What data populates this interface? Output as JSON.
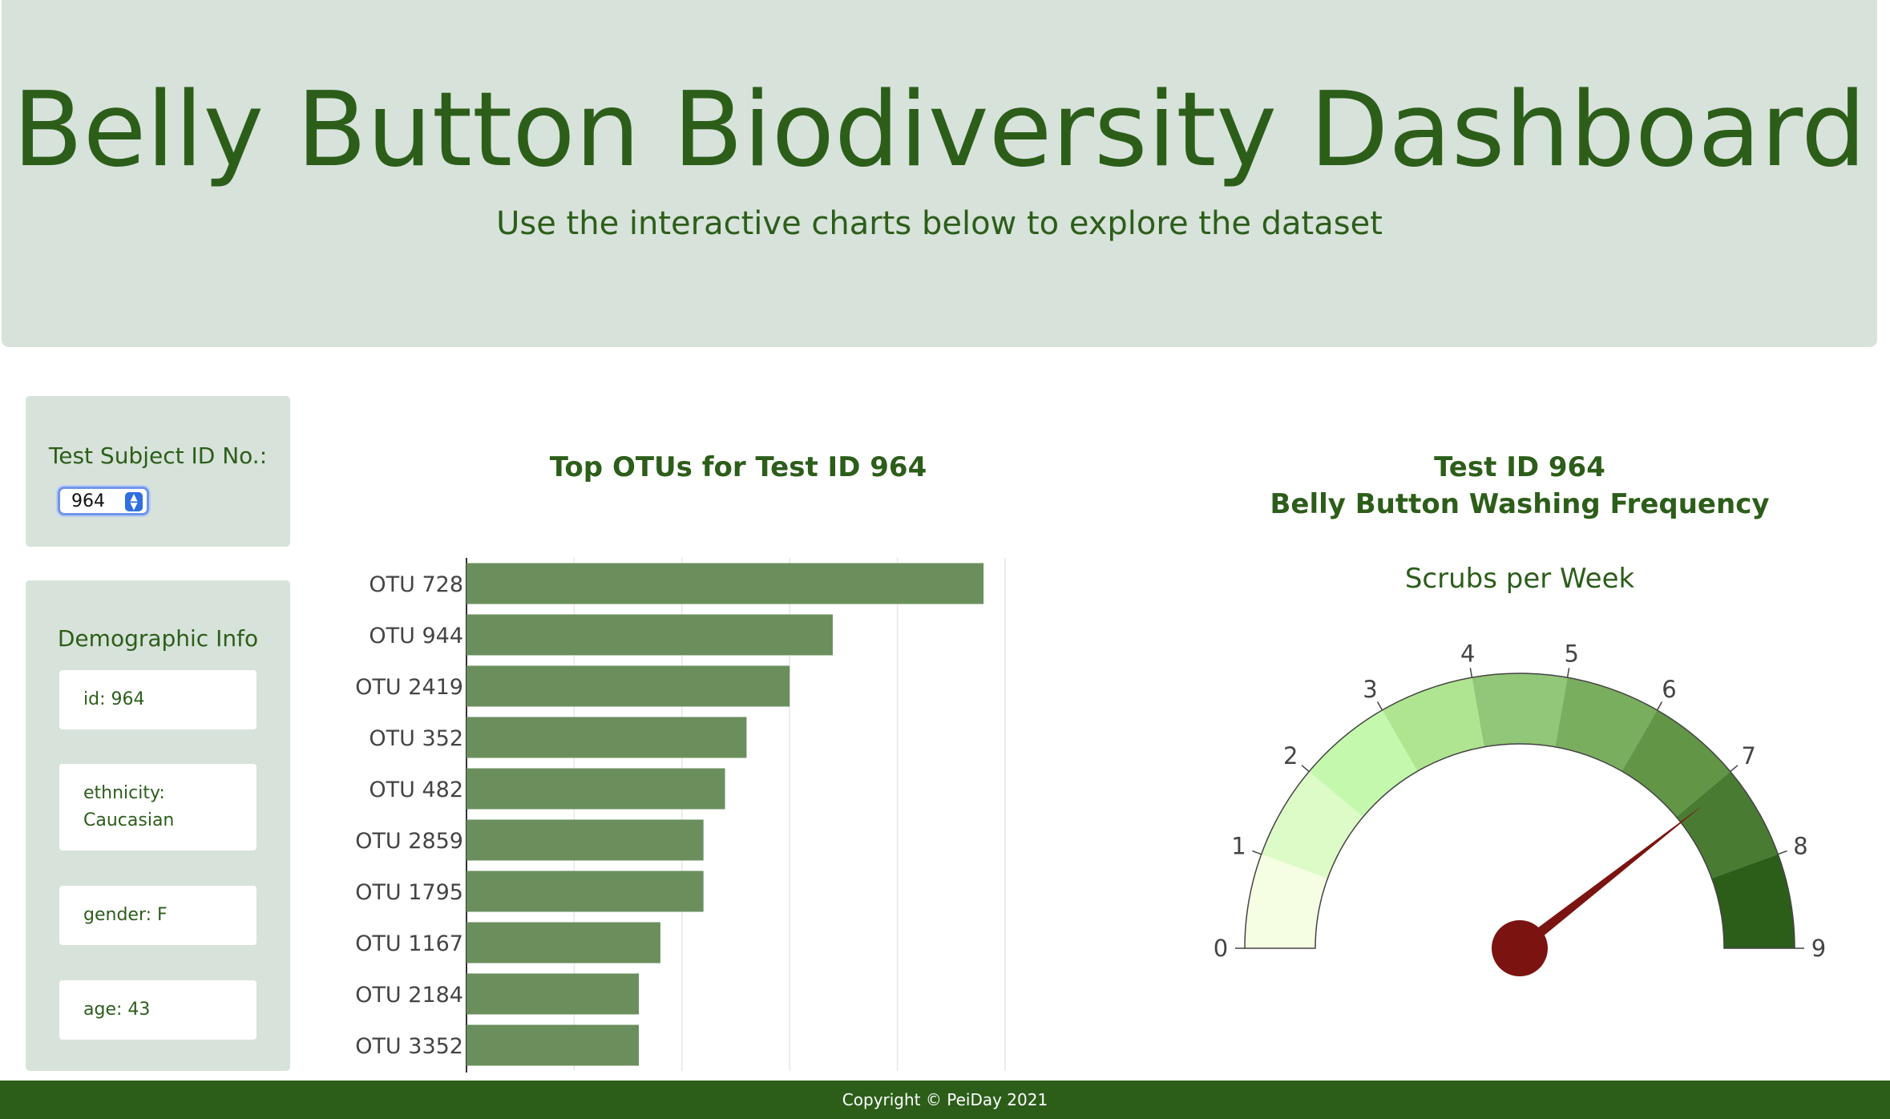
{
  "header": {
    "title": "Belly Button Biodiversity Dashboard",
    "subtitle": "Use the interactive charts below to explore the dataset"
  },
  "selector": {
    "label": "Test Subject ID No.:",
    "selected": "964"
  },
  "demographics": {
    "title": "Demographic Info",
    "entries": [
      "id: 964",
      "ethnicity: Caucasian",
      "gender: F",
      "age: 43"
    ]
  },
  "footer": {
    "text": "Copyright © PeiDay 2021"
  },
  "colors": {
    "brand": "#2c5e1a",
    "panel_bg": "#d7e2da",
    "bar": "#6a8f5c",
    "needle": "#7b1410"
  },
  "chart_data": [
    {
      "type": "bar",
      "orientation": "horizontal",
      "title": "Top OTUs for Test ID 964",
      "categories": [
        "OTU 728",
        "OTU 944",
        "OTU 2419",
        "OTU 352",
        "OTU 482",
        "OTU 2859",
        "OTU 1795",
        "OTU 1167",
        "OTU 2184",
        "OTU 3352"
      ],
      "values": [
        24,
        17,
        15,
        13,
        12,
        11,
        11,
        9,
        8,
        8
      ],
      "xlim": [
        0,
        25
      ],
      "grid": true
    },
    {
      "type": "gauge",
      "title": "Test ID 964",
      "subtitle": "Belly Button Washing Frequency",
      "label": "Scrubs per Week",
      "value": 7.1,
      "range": [
        0,
        9
      ],
      "ticks": [
        "0",
        "1",
        "2",
        "3",
        "4",
        "5",
        "6",
        "7",
        "8",
        "9"
      ],
      "band_colors": [
        "#f5fde2",
        "#dcfbc6",
        "#c4f9ad",
        "#afe590",
        "#92c678",
        "#7aae5f",
        "#629546",
        "#4a7b32",
        "#2c5e1a"
      ]
    }
  ]
}
